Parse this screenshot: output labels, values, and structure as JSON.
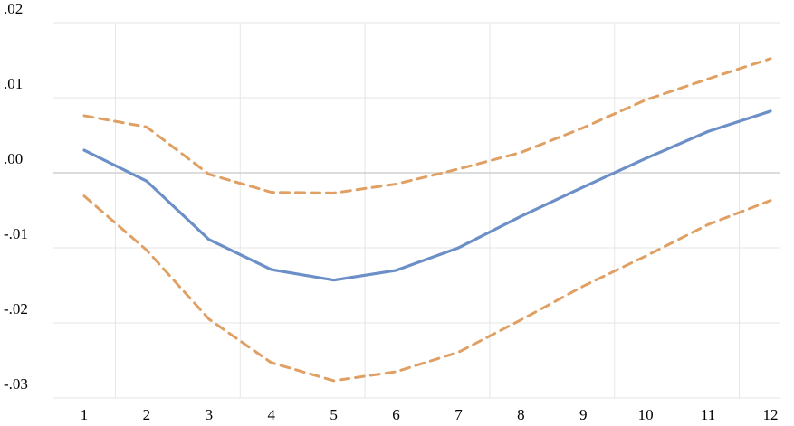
{
  "chart_data": {
    "type": "line",
    "title": "",
    "xlabel": "",
    "ylabel": "",
    "x": [
      1,
      2,
      3,
      4,
      5,
      6,
      7,
      8,
      9,
      10,
      11,
      12
    ],
    "xlim": [
      1,
      12
    ],
    "ylim": [
      -0.03,
      0.02
    ],
    "x_tick_labels": [
      "1",
      "2",
      "3",
      "4",
      "5",
      "6",
      "7",
      "8",
      "9",
      "10",
      "11",
      "12"
    ],
    "y_tick_values": [
      -0.03,
      -0.02,
      -0.01,
      0.0,
      0.01,
      0.02
    ],
    "y_tick_labels": [
      "-.03",
      "-.02",
      "-.01",
      ".00",
      ".01",
      ".02"
    ],
    "grid": true,
    "legend": "none",
    "series": [
      {
        "key": "estimate",
        "style": "solid",
        "color": "#6b8fc6",
        "values": [
          0.003,
          -0.0011,
          -0.0089,
          -0.0129,
          -0.0143,
          -0.013,
          -0.01,
          -0.0058,
          -0.0019,
          0.0019,
          0.0055,
          0.0082
        ]
      },
      {
        "key": "upper-bound",
        "style": "dashed",
        "color": "#e0a064",
        "values": [
          0.0076,
          0.0061,
          -0.0002,
          -0.0026,
          -0.0027,
          -0.0015,
          0.0005,
          0.0027,
          0.006,
          0.0097,
          0.0125,
          0.0152
        ]
      },
      {
        "key": "lower-bound",
        "style": "dashed",
        "color": "#e0a064",
        "values": [
          -0.0031,
          -0.0103,
          -0.0195,
          -0.0253,
          -0.0277,
          -0.0265,
          -0.0239,
          -0.0196,
          -0.0151,
          -0.0111,
          -0.0069,
          -0.0037
        ]
      }
    ]
  }
}
